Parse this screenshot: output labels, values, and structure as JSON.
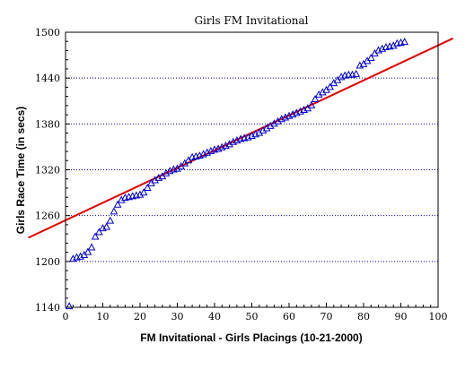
{
  "chart_data": {
    "type": "scatter",
    "title": "Girls FM Invitational",
    "xlabel": "FM Invitational - Girls Placings (10-21-2000)",
    "ylabel": "Girls Race Time (in secs)",
    "xlim": [
      0,
      100
    ],
    "ylim": [
      1140,
      1500
    ],
    "x_ticks": [
      0,
      10,
      20,
      30,
      40,
      50,
      60,
      70,
      80,
      90,
      100
    ],
    "y_ticks": [
      1140,
      1200,
      1260,
      1320,
      1380,
      1440,
      1500
    ],
    "y_grid": "dotted horizontal lines at each y tick",
    "series": [
      {
        "marker": "open-triangle",
        "color": "#0000cc",
        "points": [
          [
            1,
            1141
          ],
          [
            2,
            1203
          ],
          [
            3,
            1205
          ],
          [
            4,
            1206
          ],
          [
            5,
            1208
          ],
          [
            6,
            1212
          ],
          [
            7,
            1218
          ],
          [
            8,
            1232
          ],
          [
            9,
            1238
          ],
          [
            10,
            1243
          ],
          [
            11,
            1245
          ],
          [
            12,
            1253
          ],
          [
            13,
            1265
          ],
          [
            14,
            1274
          ],
          [
            15,
            1280
          ],
          [
            16,
            1283
          ],
          [
            17,
            1284
          ],
          [
            18,
            1285
          ],
          [
            19,
            1286
          ],
          [
            20,
            1287
          ],
          [
            21,
            1290
          ],
          [
            22,
            1296
          ],
          [
            23,
            1302
          ],
          [
            24,
            1306
          ],
          [
            25,
            1309
          ],
          [
            26,
            1311
          ],
          [
            27,
            1315
          ],
          [
            28,
            1318
          ],
          [
            29,
            1320
          ],
          [
            30,
            1321
          ],
          [
            31,
            1324
          ],
          [
            32,
            1328
          ],
          [
            33,
            1332
          ],
          [
            34,
            1336
          ],
          [
            35,
            1337
          ],
          [
            36,
            1338
          ],
          [
            37,
            1340
          ],
          [
            38,
            1342
          ],
          [
            39,
            1344
          ],
          [
            40,
            1346
          ],
          [
            41,
            1347
          ],
          [
            42,
            1349
          ],
          [
            43,
            1351
          ],
          [
            44,
            1353
          ],
          [
            45,
            1356
          ],
          [
            46,
            1358
          ],
          [
            47,
            1360
          ],
          [
            48,
            1361
          ],
          [
            49,
            1362
          ],
          [
            50,
            1364
          ],
          [
            51,
            1366
          ],
          [
            52,
            1368
          ],
          [
            53,
            1371
          ],
          [
            54,
            1374
          ],
          [
            55,
            1377
          ],
          [
            56,
            1380
          ],
          [
            57,
            1383
          ],
          [
            58,
            1386
          ],
          [
            59,
            1388
          ],
          [
            60,
            1390
          ],
          [
            61,
            1392
          ],
          [
            62,
            1394
          ],
          [
            63,
            1396
          ],
          [
            64,
            1398
          ],
          [
            65,
            1400
          ],
          [
            66,
            1404
          ],
          [
            67,
            1412
          ],
          [
            68,
            1418
          ],
          [
            69,
            1421
          ],
          [
            70,
            1424
          ],
          [
            71,
            1428
          ],
          [
            72,
            1433
          ],
          [
            73,
            1437
          ],
          [
            74,
            1441
          ],
          [
            75,
            1443
          ],
          [
            76,
            1444
          ],
          [
            77,
            1444
          ],
          [
            78,
            1445
          ],
          [
            79,
            1456
          ],
          [
            80,
            1458
          ],
          [
            81,
            1462
          ],
          [
            82,
            1466
          ],
          [
            83,
            1472
          ],
          [
            84,
            1476
          ],
          [
            85,
            1478
          ],
          [
            86,
            1480
          ],
          [
            87,
            1481
          ],
          [
            88,
            1482
          ],
          [
            89,
            1485
          ],
          [
            90,
            1486
          ],
          [
            91,
            1487
          ]
        ]
      },
      {
        "type": "line",
        "color": "#e00000",
        "points": [
          [
            -10,
            1231
          ],
          [
            104,
            1492
          ]
        ]
      }
    ]
  }
}
